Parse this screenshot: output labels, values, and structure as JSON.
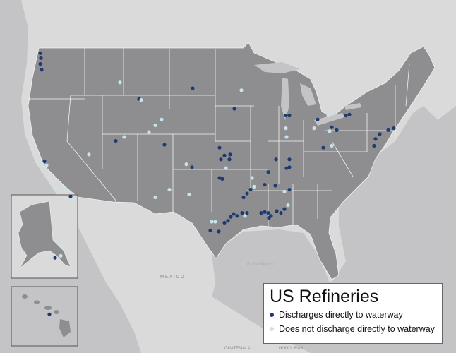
{
  "legend": {
    "title": "US Refineries",
    "items": [
      {
        "label": "Discharges directly to waterway",
        "color": "#1f3a6e"
      },
      {
        "label": "Does not discharge directly to waterway",
        "color": "#c9e3ee"
      }
    ]
  },
  "place_labels": {
    "mexico": "MÉXICO",
    "gulf": "Gulf of Mexico",
    "guatemala": "GUATEMALA",
    "honduras": "HONDURAS"
  },
  "colors": {
    "us_land": "#8e8e90",
    "other_land": "#dadadb",
    "water": "#c4c4c6",
    "state_border": "#f2f2f2"
  },
  "refineries": [
    {
      "lon": -122.4,
      "lat": 48.3,
      "d": true
    },
    {
      "lon": -122.3,
      "lat": 47.8,
      "d": true
    },
    {
      "lon": -122.4,
      "lat": 47.2,
      "d": true
    },
    {
      "lon": -122.2,
      "lat": 46.6,
      "d": true
    },
    {
      "lon": -111.1,
      "lat": 45.3,
      "d": false
    },
    {
      "lon": -108.4,
      "lat": 43.6,
      "d": true
    },
    {
      "lon": -108.1,
      "lat": 43.5,
      "d": false
    },
    {
      "lon": -100.8,
      "lat": 44.7,
      "d": true
    },
    {
      "lon": -93.9,
      "lat": 44.5,
      "d": false
    },
    {
      "lon": -94.9,
      "lat": 42.6,
      "d": true
    },
    {
      "lon": -111.7,
      "lat": 39.3,
      "d": true
    },
    {
      "lon": -110.5,
      "lat": 39.7,
      "d": false
    },
    {
      "lon": -107.0,
      "lat": 40.2,
      "d": false
    },
    {
      "lon": -106.1,
      "lat": 40.9,
      "d": false
    },
    {
      "lon": -105.2,
      "lat": 41.5,
      "d": false
    },
    {
      "lon": -104.8,
      "lat": 38.9,
      "d": true
    },
    {
      "lon": -115.5,
      "lat": 37.9,
      "d": false
    },
    {
      "lon": -122.1,
      "lat": 37.1,
      "d": false
    },
    {
      "lon": -121.8,
      "lat": 37.2,
      "d": true
    },
    {
      "lon": -121.5,
      "lat": 36.8,
      "d": false
    },
    {
      "lon": -120.3,
      "lat": 34.5,
      "d": false
    },
    {
      "lon": -118.9,
      "lat": 34.4,
      "d": false
    },
    {
      "lon": -118.1,
      "lat": 33.6,
      "d": true
    },
    {
      "lon": -117.8,
      "lat": 33.3,
      "d": false
    },
    {
      "lon": -120.3,
      "lat": 27.3,
      "d": true
    },
    {
      "lon": -119.5,
      "lat": 27.5,
      "d": false
    },
    {
      "lon": -119.3,
      "lat": 28.5,
      "d": false
    },
    {
      "lon": -121.1,
      "lat": 21.5,
      "d": true
    },
    {
      "lon": -97.0,
      "lat": 38.6,
      "d": true
    },
    {
      "lon": -96.3,
      "lat": 37.8,
      "d": true
    },
    {
      "lon": -95.5,
      "lat": 37.9,
      "d": true
    },
    {
      "lon": -96.8,
      "lat": 37.4,
      "d": true
    },
    {
      "lon": -95.6,
      "lat": 37.4,
      "d": true
    },
    {
      "lon": -96.1,
      "lat": 36.5,
      "d": false
    },
    {
      "lon": -97.0,
      "lat": 35.5,
      "d": true
    },
    {
      "lon": -96.6,
      "lat": 35.4,
      "d": true
    },
    {
      "lon": -101.7,
      "lat": 36.9,
      "d": false
    },
    {
      "lon": -100.9,
      "lat": 36.6,
      "d": true
    },
    {
      "lon": -101.3,
      "lat": 33.8,
      "d": false
    },
    {
      "lon": -106.1,
      "lat": 33.5,
      "d": false
    },
    {
      "lon": -104.1,
      "lat": 34.3,
      "d": false
    },
    {
      "lon": -98.1,
      "lat": 31.0,
      "d": false
    },
    {
      "lon": -97.6,
      "lat": 31.0,
      "d": false
    },
    {
      "lon": -98.3,
      "lat": 30.1,
      "d": true
    },
    {
      "lon": -97.1,
      "lat": 30.0,
      "d": true
    },
    {
      "lon": -96.3,
      "lat": 30.9,
      "d": true
    },
    {
      "lon": -95.8,
      "lat": 31.1,
      "d": true
    },
    {
      "lon": -95.4,
      "lat": 31.5,
      "d": true
    },
    {
      "lon": -95.0,
      "lat": 31.8,
      "d": true
    },
    {
      "lon": -94.5,
      "lat": 31.6,
      "d": true
    },
    {
      "lon": -93.8,
      "lat": 31.9,
      "d": true
    },
    {
      "lon": -93.4,
      "lat": 31.6,
      "d": false
    },
    {
      "lon": -93.1,
      "lat": 31.9,
      "d": true
    },
    {
      "lon": -93.6,
      "lat": 33.5,
      "d": true
    },
    {
      "lon": -93.1,
      "lat": 33.9,
      "d": true
    },
    {
      "lon": -92.6,
      "lat": 34.3,
      "d": true
    },
    {
      "lon": -92.1,
      "lat": 34.6,
      "d": false
    },
    {
      "lon": -92.4,
      "lat": 35.5,
      "d": false
    },
    {
      "lon": -90.1,
      "lat": 36.1,
      "d": true
    },
    {
      "lon": -91.1,
      "lat": 31.9,
      "d": true
    },
    {
      "lon": -90.6,
      "lat": 32.0,
      "d": true
    },
    {
      "lon": -90.1,
      "lat": 31.9,
      "d": true
    },
    {
      "lon": -90.0,
      "lat": 31.4,
      "d": true
    },
    {
      "lon": -89.7,
      "lat": 31.6,
      "d": true
    },
    {
      "lon": -88.9,
      "lat": 32.1,
      "d": true
    },
    {
      "lon": -88.3,
      "lat": 31.9,
      "d": true
    },
    {
      "lon": -87.8,
      "lat": 32.3,
      "d": true
    },
    {
      "lon": -87.3,
      "lat": 32.7,
      "d": false
    },
    {
      "lon": -87.8,
      "lat": 34.1,
      "d": false
    },
    {
      "lon": -87.1,
      "lat": 34.3,
      "d": true
    },
    {
      "lon": -90.6,
      "lat": 34.8,
      "d": true
    },
    {
      "lon": -89.1,
      "lat": 34.7,
      "d": true
    },
    {
      "lon": -89.0,
      "lat": 37.4,
      "d": true
    },
    {
      "lon": -87.5,
      "lat": 36.5,
      "d": true
    },
    {
      "lon": -87.1,
      "lat": 37.4,
      "d": true
    },
    {
      "lon": -87.6,
      "lat": 41.9,
      "d": true
    },
    {
      "lon": -87.1,
      "lat": 41.9,
      "d": true
    },
    {
      "lon": -87.6,
      "lat": 40.6,
      "d": false
    },
    {
      "lon": -87.5,
      "lat": 39.7,
      "d": false
    },
    {
      "lon": -87.1,
      "lat": 36.6,
      "d": true
    },
    {
      "lon": -83.6,
      "lat": 40.6,
      "d": false
    },
    {
      "lon": -83.1,
      "lat": 41.5,
      "d": true
    },
    {
      "lon": -81.6,
      "lat": 41.9,
      "d": false
    },
    {
      "lon": -81.1,
      "lat": 40.7,
      "d": true
    },
    {
      "lon": -80.4,
      "lat": 40.4,
      "d": true
    },
    {
      "lon": -82.3,
      "lat": 38.6,
      "d": true
    },
    {
      "lon": -81.1,
      "lat": 38.8,
      "d": false
    },
    {
      "lon": -79.1,
      "lat": 41.9,
      "d": true
    },
    {
      "lon": -78.6,
      "lat": 42.0,
      "d": true
    },
    {
      "lon": -75.1,
      "lat": 38.8,
      "d": true
    },
    {
      "lon": -74.9,
      "lat": 39.5,
      "d": true
    },
    {
      "lon": -74.3,
      "lat": 40.0,
      "d": true
    },
    {
      "lon": -73.1,
      "lat": 40.4,
      "d": true
    },
    {
      "lon": -72.3,
      "lat": 40.6,
      "d": true
    },
    {
      "lon": -81.4,
      "lat": 40.3,
      "d": false
    }
  ]
}
